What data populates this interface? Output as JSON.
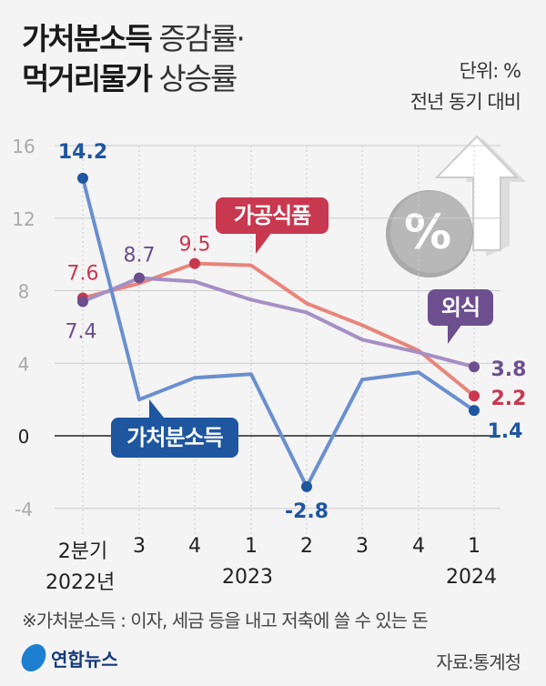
{
  "title": {
    "line1_bold": "가처분소득",
    "line1_rest": "증감률·",
    "line2_bold": "먹거리물가",
    "line2_rest": "상승률"
  },
  "unit": {
    "line1": "단위: %",
    "line2": "전년 동기 대비"
  },
  "chart_data": {
    "type": "line",
    "x": [
      "2분기",
      "3",
      "4",
      "1",
      "2",
      "3",
      "4",
      "1"
    ],
    "year_labels": [
      "2022년",
      "2023",
      "2024"
    ],
    "ylim": [
      -4,
      16
    ],
    "yticks": [
      "16",
      "12",
      "8",
      "4",
      "0",
      "-4"
    ],
    "grid": true,
    "series": [
      {
        "name": "가처분소득",
        "values": [
          14.2,
          2.0,
          3.2,
          3.4,
          -2.8,
          3.1,
          3.5,
          1.4
        ],
        "color": "#6a8fd0",
        "label_color": "#1e56a0",
        "labels": [
          "14.2",
          "",
          "",
          "",
          "-2.8",
          "",
          "",
          "1.4"
        ]
      },
      {
        "name": "가공식품",
        "values": [
          7.6,
          8.4,
          9.5,
          9.4,
          7.3,
          6.1,
          4.7,
          2.2
        ],
        "color": "#e8857a",
        "label_color": "#c8384f",
        "labels": [
          "7.6",
          "",
          "9.5",
          "",
          "",
          "",
          "",
          "2.2"
        ]
      },
      {
        "name": "외식",
        "values": [
          7.4,
          8.7,
          8.5,
          7.5,
          6.8,
          5.3,
          4.6,
          3.8
        ],
        "color": "#a58fc4",
        "label_color": "#6c4f8f",
        "labels": [
          "7.4",
          "8.7",
          "",
          "",
          "",
          "",
          "",
          "3.8"
        ]
      }
    ]
  },
  "icon": "percent-up-arrow-icon",
  "footnote": "※가처분소득 : 이자, 세금 등을 내고 저축에 쓸 수 있는 돈",
  "logo": "연합뉴스",
  "source": "자료:통계청"
}
